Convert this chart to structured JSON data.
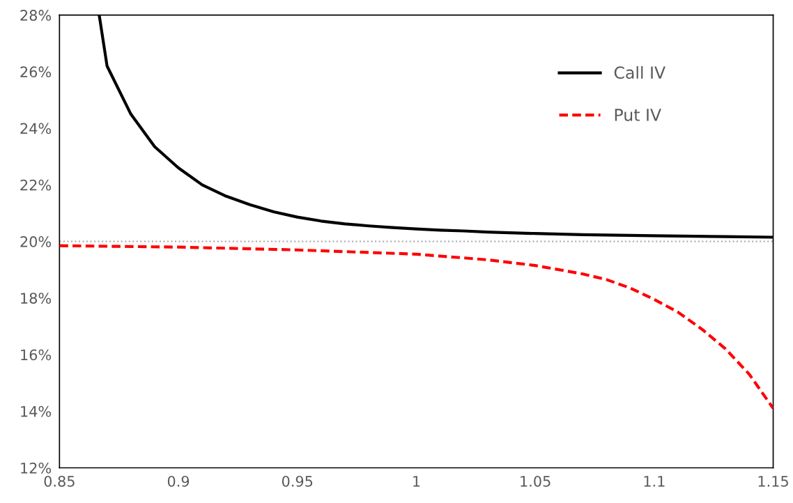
{
  "chart_data": {
    "type": "line",
    "series": [
      {
        "name": "Call IV",
        "color": "#000000",
        "line_style": "solid",
        "x": [
          0.8667,
          0.87,
          0.88,
          0.89,
          0.9,
          0.91,
          0.92,
          0.93,
          0.94,
          0.95,
          0.96,
          0.97,
          0.98,
          0.99,
          1.0,
          1.01,
          1.02,
          1.03,
          1.05,
          1.07,
          1.1,
          1.13,
          1.15
        ],
        "values": [
          28,
          26.2,
          24.5,
          23.35,
          22.6,
          22.0,
          21.6,
          21.3,
          21.05,
          20.86,
          20.72,
          20.62,
          20.55,
          20.49,
          20.44,
          20.4,
          20.37,
          20.33,
          20.28,
          20.24,
          20.2,
          20.17,
          20.15
        ]
      },
      {
        "name": "Put IV",
        "color": "#ff0000",
        "line_style": "dashed",
        "x": [
          0.85,
          0.9,
          0.95,
          1.0,
          1.03,
          1.05,
          1.07,
          1.08,
          1.09,
          1.1,
          1.11,
          1.12,
          1.13,
          1.14,
          1.15
        ],
        "values": [
          19.85,
          19.8,
          19.7,
          19.55,
          19.35,
          19.15,
          18.85,
          18.65,
          18.35,
          17.95,
          17.5,
          16.9,
          16.2,
          15.3,
          14.1
        ]
      }
    ],
    "xlim": [
      0.85,
      1.15
    ],
    "xticks": [
      0.85,
      0.9,
      0.95,
      1,
      1.05,
      1.1,
      1.15
    ],
    "ylim": [
      12,
      28
    ],
    "yticks": [
      {
        "value": 12,
        "label": "12%"
      },
      {
        "value": 14,
        "label": "14%"
      },
      {
        "value": 16,
        "label": "16%"
      },
      {
        "value": 18,
        "label": "18%"
      },
      {
        "value": 20,
        "label": "20%"
      },
      {
        "value": 22,
        "label": "22%"
      },
      {
        "value": 24,
        "label": "24%"
      },
      {
        "value": 26,
        "label": "26%"
      },
      {
        "value": 28,
        "label": "28%"
      }
    ],
    "ref_lines": [
      {
        "axis": "y",
        "value": 20,
        "label": null,
        "color": "#a6a6a6",
        "line_style": "dotted"
      }
    ],
    "grid": false,
    "legend": "top right",
    "marker": "none"
  }
}
